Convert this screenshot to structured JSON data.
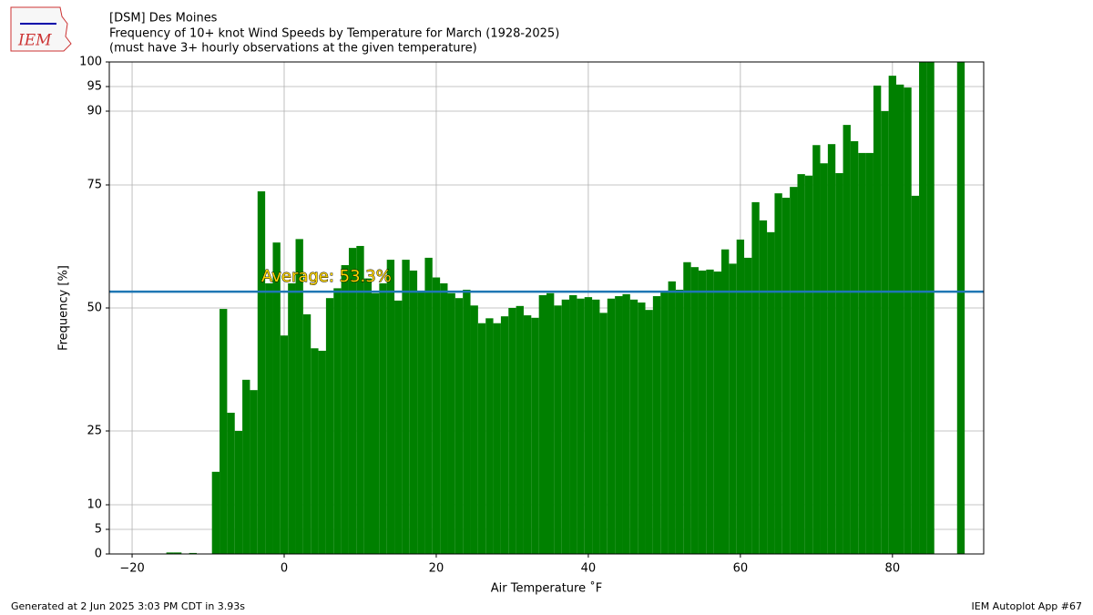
{
  "logo_text": "IEM",
  "footer_left": "Generated at 2 Jun 2025 3:03 PM CDT in 3.93s",
  "footer_right": "IEM Autoplot App #67",
  "chart_data": {
    "type": "bar",
    "title": "[DSM] Des Moines",
    "title2": "Frequency of 10+ knot Wind Speeds by Temperature for March (1928-2025)",
    "subtitle": "(must have 3+ hourly observations at the given temperature)",
    "xlabel": "Air Temperature ˚F",
    "ylabel": "Frequency [%]",
    "color": "#008000",
    "x": [
      -15,
      -14,
      -12,
      -9,
      -8,
      -7,
      -6,
      -5,
      -4,
      -3,
      -2,
      -1,
      0,
      1,
      2,
      3,
      4,
      5,
      6,
      7,
      8,
      9,
      10,
      11,
      12,
      13,
      14,
      15,
      16,
      17,
      18,
      19,
      20,
      21,
      22,
      23,
      24,
      25,
      26,
      27,
      28,
      29,
      30,
      31,
      32,
      33,
      34,
      35,
      36,
      37,
      38,
      39,
      40,
      41,
      42,
      43,
      44,
      45,
      46,
      47,
      48,
      49,
      50,
      51,
      52,
      53,
      54,
      55,
      56,
      57,
      58,
      59,
      60,
      61,
      62,
      63,
      64,
      65,
      66,
      67,
      68,
      69,
      70,
      71,
      72,
      73,
      74,
      75,
      76,
      77,
      78,
      79,
      80,
      81,
      82,
      83,
      84,
      85,
      89
    ],
    "values": [
      0.3,
      0.3,
      0.2,
      16.7,
      49.8,
      28.7,
      25,
      35.4,
      33.3,
      73.7,
      55,
      63.3,
      44.4,
      55,
      64,
      48.7,
      41.8,
      41.3,
      52,
      54,
      58.7,
      62.2,
      62.6,
      56,
      53,
      55,
      59.8,
      51.5,
      59.8,
      57.6,
      53.5,
      60.2,
      56.2,
      55,
      53,
      52,
      53.7,
      50.5,
      46.9,
      47.9,
      46.9,
      48.3,
      50,
      50.4,
      48.5,
      48,
      52.6,
      53,
      50.5,
      51.7,
      52.6,
      51.9,
      52.2,
      51.7,
      49,
      51.9,
      52.4,
      52.8,
      51.7,
      51.1,
      49.6,
      52.4,
      53.3,
      55.4,
      53.7,
      59.3,
      58.3,
      57.6,
      57.8,
      57.4,
      61.9,
      59,
      63.9,
      60.2,
      71.5,
      67.8,
      65.4,
      73.3,
      72.4,
      74.6,
      77.2,
      76.9,
      83.1,
      79.4,
      83.3,
      77.4,
      87.2,
      83.9,
      81.5,
      81.5,
      95.2,
      90,
      97.2,
      95.4,
      94.8,
      72.8,
      100,
      100,
      100
    ],
    "average": 53.3,
    "average_color": "#1f77b4",
    "annotation": "Average: 53.3%",
    "xlim": [
      -23,
      92
    ],
    "ylim": [
      0,
      100
    ],
    "xticks": [
      {
        "value": -20,
        "label": "−20"
      },
      0,
      20,
      40,
      60,
      80
    ],
    "yticks": [
      0,
      5,
      10,
      25,
      50,
      75,
      90,
      95,
      100
    ],
    "grid": true
  }
}
